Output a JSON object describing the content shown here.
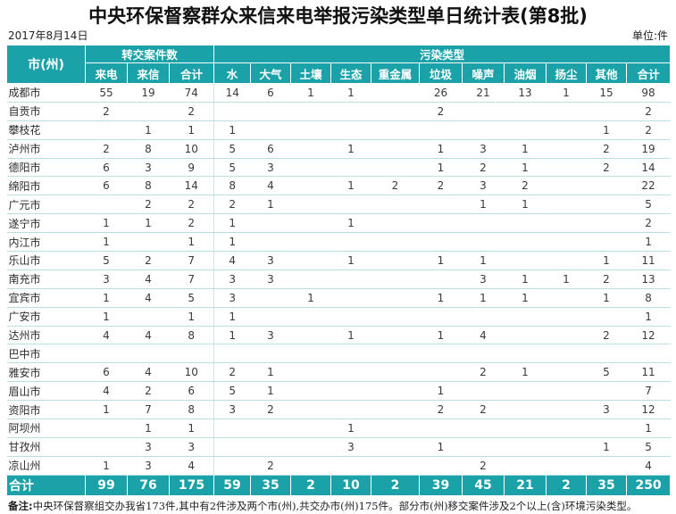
{
  "title": "中央环保督察群众来信来电举报污染类型单日统计表(第8批)",
  "date": "2017年8月14日",
  "unit": "单位:件",
  "header": {
    "corner": "市(州)",
    "group_transfer": "转交案件数",
    "group_pollution": "污染类型",
    "columns": [
      "来电",
      "来信",
      "合计",
      "水",
      "大气",
      "土壤",
      "生态",
      "重金属",
      "垃圾",
      "噪声",
      "油烟",
      "扬尘",
      "其他",
      "合计"
    ]
  },
  "rows": [
    {
      "city": "成都市",
      "v": [
        "55",
        "19",
        "74",
        "14",
        "6",
        "1",
        "1",
        "",
        "26",
        "21",
        "13",
        "1",
        "15",
        "98"
      ]
    },
    {
      "city": "自贡市",
      "v": [
        "2",
        "",
        "2",
        "",
        "",
        "",
        "",
        "",
        "2",
        "",
        "",
        "",
        "",
        "2"
      ]
    },
    {
      "city": "攀枝花",
      "v": [
        "",
        "1",
        "1",
        "1",
        "",
        "",
        "",
        "",
        "",
        "",
        "",
        "",
        "1",
        "2"
      ]
    },
    {
      "city": "泸州市",
      "v": [
        "2",
        "8",
        "10",
        "5",
        "6",
        "",
        "1",
        "",
        "1",
        "3",
        "1",
        "",
        "2",
        "19"
      ]
    },
    {
      "city": "德阳市",
      "v": [
        "6",
        "3",
        "9",
        "5",
        "3",
        "",
        "",
        "",
        "1",
        "2",
        "1",
        "",
        "2",
        "14"
      ]
    },
    {
      "city": "绵阳市",
      "v": [
        "6",
        "8",
        "14",
        "8",
        "4",
        "",
        "1",
        "2",
        "2",
        "3",
        "2",
        "",
        "",
        "22"
      ]
    },
    {
      "city": "广元市",
      "v": [
        "",
        "2",
        "2",
        "2",
        "1",
        "",
        "",
        "",
        "",
        "1",
        "1",
        "",
        "",
        "5"
      ]
    },
    {
      "city": "遂宁市",
      "v": [
        "1",
        "1",
        "2",
        "1",
        "",
        "",
        "1",
        "",
        "",
        "",
        "",
        "",
        "",
        "2"
      ]
    },
    {
      "city": "内江市",
      "v": [
        "1",
        "",
        "1",
        "1",
        "",
        "",
        "",
        "",
        "",
        "",
        "",
        "",
        "",
        "1"
      ]
    },
    {
      "city": "乐山市",
      "v": [
        "5",
        "2",
        "7",
        "4",
        "3",
        "",
        "1",
        "",
        "1",
        "1",
        "",
        "",
        "1",
        "11"
      ]
    },
    {
      "city": "南充市",
      "v": [
        "3",
        "4",
        "7",
        "3",
        "3",
        "",
        "",
        "",
        "",
        "3",
        "1",
        "1",
        "2",
        "13"
      ]
    },
    {
      "city": "宜宾市",
      "v": [
        "1",
        "4",
        "5",
        "3",
        "",
        "1",
        "",
        "",
        "1",
        "1",
        "1",
        "",
        "1",
        "8"
      ]
    },
    {
      "city": "广安市",
      "v": [
        "1",
        "",
        "1",
        "1",
        "",
        "",
        "",
        "",
        "",
        "",
        "",
        "",
        "",
        "1"
      ]
    },
    {
      "city": "达州市",
      "v": [
        "4",
        "4",
        "8",
        "1",
        "3",
        "",
        "1",
        "",
        "1",
        "4",
        "",
        "",
        "2",
        "12"
      ]
    },
    {
      "city": "巴中市",
      "v": [
        "",
        "",
        "",
        "",
        "",
        "",
        "",
        "",
        "",
        "",
        "",
        "",
        "",
        ""
      ]
    },
    {
      "city": "雅安市",
      "v": [
        "6",
        "4",
        "10",
        "2",
        "1",
        "",
        "",
        "",
        "",
        "2",
        "1",
        "",
        "5",
        "11"
      ]
    },
    {
      "city": "眉山市",
      "v": [
        "4",
        "2",
        "6",
        "5",
        "1",
        "",
        "",
        "",
        "1",
        "",
        "",
        "",
        "",
        "7"
      ]
    },
    {
      "city": "资阳市",
      "v": [
        "1",
        "7",
        "8",
        "3",
        "2",
        "",
        "",
        "",
        "2",
        "2",
        "",
        "",
        "3",
        "12"
      ]
    },
    {
      "city": "阿坝州",
      "v": [
        "",
        "1",
        "1",
        "",
        "",
        "",
        "1",
        "",
        "",
        "",
        "",
        "",
        "",
        "1"
      ]
    },
    {
      "city": "甘孜州",
      "v": [
        "",
        "3",
        "3",
        "",
        "",
        "",
        "3",
        "",
        "1",
        "",
        "",
        "",
        "1",
        "5"
      ]
    },
    {
      "city": "凉山州",
      "v": [
        "1",
        "3",
        "4",
        "",
        "2",
        "",
        "",
        "",
        "",
        "2",
        "",
        "",
        "",
        "4"
      ]
    }
  ],
  "total": {
    "label": "合计",
    "v": [
      "99",
      "76",
      "175",
      "59",
      "35",
      "2",
      "10",
      "2",
      "39",
      "45",
      "21",
      "2",
      "35",
      "250"
    ]
  },
  "note": {
    "label": "备注:",
    "text": "中央环保督察组交办我省173件,其中有2件涉及两个市(州),共交办市(州)175件。部分市(州)移交案件涉及2个以上(含)环境污染类型。"
  },
  "colors": {
    "header_bg": "#1aa2a8",
    "row_line": "#b9dfe1"
  }
}
